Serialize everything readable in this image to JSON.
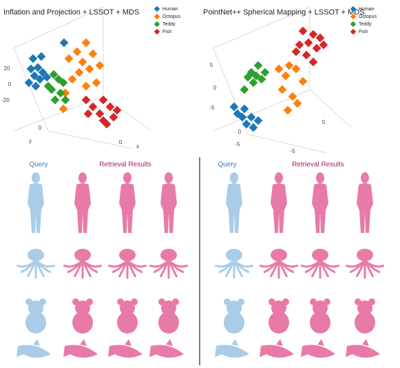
{
  "chart_data": [
    {
      "type": "scatter3d",
      "title": "Inflation and Projection + LSSOT + MDS",
      "xlim": [
        0,
        290
      ],
      "ylim": [
        225,
        0
      ],
      "tick_labels": [
        "20",
        "0",
        "-20",
        "0",
        "0",
        "y",
        "x"
      ],
      "series": [
        {
          "name": "Human",
          "color": "#1f77b4",
          "x": [
            48,
            60,
            45,
            55,
            62,
            50,
            42,
            58,
            68,
            52,
            93
          ],
          "y": [
            85,
            82,
            100,
            98,
            105,
            110,
            120,
            115,
            112,
            125,
            62
          ]
        },
        {
          "name": "Octopus",
          "color": "#ff7f0e",
          "x": [
            125,
            112,
            135,
            120,
            100,
            130,
            115,
            145,
            105,
            125,
            95,
            140,
            92
          ],
          "y": [
            62,
            75,
            78,
            90,
            85,
            100,
            105,
            95,
            115,
            125,
            135,
            120,
            158
          ]
        },
        {
          "name": "Teddy",
          "color": "#2ca02c",
          "x": [
            78,
            85,
            92,
            75,
            88,
            80,
            95,
            70
          ],
          "y": [
            108,
            115,
            120,
            130,
            135,
            145,
            145,
            125
          ]
        },
        {
          "name": "Fish",
          "color": "#d62728",
          "x": [
            150,
            160,
            145,
            165,
            150,
            170,
            125,
            135,
            128,
            155
          ],
          "y": [
            145,
            155,
            165,
            170,
            175,
            160,
            145,
            155,
            165,
            180
          ]
        }
      ]
    },
    {
      "type": "scatter3d",
      "title": "PointNet++  Spherical Mapping + LSSOT + MDS",
      "xlim": [
        0,
        290
      ],
      "ylim": [
        225,
        0
      ],
      "tick_labels": [
        "5",
        "0",
        "-5",
        "0",
        "-5",
        "5",
        "-5"
      ],
      "series": [
        {
          "name": "Human",
          "color": "#1f77b4",
          "x": [
            65,
            55,
            75,
            68,
            85,
            62,
            78,
            50
          ],
          "y": [
            158,
            165,
            170,
            180,
            175,
            170,
            185,
            155
          ]
        },
        {
          "name": "Octopus",
          "color": "#ff7f0e",
          "x": [
            115,
            130,
            125,
            140,
            120,
            135,
            150,
            128,
            142
          ],
          "y": [
            100,
            95,
            110,
            100,
            130,
            140,
            118,
            160,
            150
          ]
        },
        {
          "name": "Teddy",
          "color": "#2ca02c",
          "x": [
            85,
            75,
            90,
            78,
            65,
            95,
            82,
            70
          ],
          "y": [
            95,
            105,
            115,
            120,
            130,
            105,
            110,
            112
          ]
        },
        {
          "name": "Fish",
          "color": "#d62728",
          "x": [
            150,
            165,
            158,
            175,
            140,
            170,
            155,
            180,
            145,
            165
          ],
          "y": [
            45,
            50,
            62,
            55,
            75,
            70,
            80,
            65,
            65,
            90
          ]
        }
      ]
    }
  ],
  "retrieval": [
    {
      "query_label": "Query",
      "results_label": "Retrieval Results"
    },
    {
      "query_label": "Query",
      "results_label": "Retrieval Results"
    }
  ]
}
